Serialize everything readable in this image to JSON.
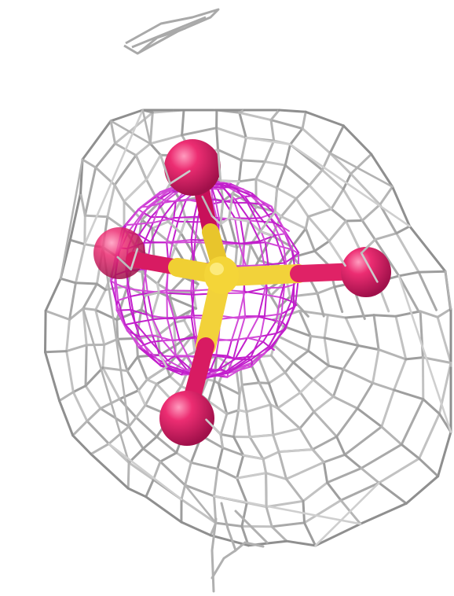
{
  "scene": {
    "subject": "sulfate-ion-electron-density",
    "colors": {
      "background": "#ffffff",
      "outer_mesh": "#b8b8b8",
      "outer_mesh_shadow": "#8a8a8a",
      "inner_mesh": "#c020c8",
      "sulfur_bond": "#f2d23a",
      "sulfur_bond_shade": "#c9a81e",
      "oxygen": "#e8246a",
      "oxygen_shade": "#a8104a",
      "oxygen_highlight": "#ff8fb4"
    },
    "atoms": [
      {
        "element": "S",
        "icon": "sulfur-atom"
      },
      {
        "element": "O",
        "icon": "oxygen-atom-top"
      },
      {
        "element": "O",
        "icon": "oxygen-atom-left"
      },
      {
        "element": "O",
        "icon": "oxygen-atom-right"
      },
      {
        "element": "O",
        "icon": "oxygen-atom-bottom"
      }
    ]
  }
}
